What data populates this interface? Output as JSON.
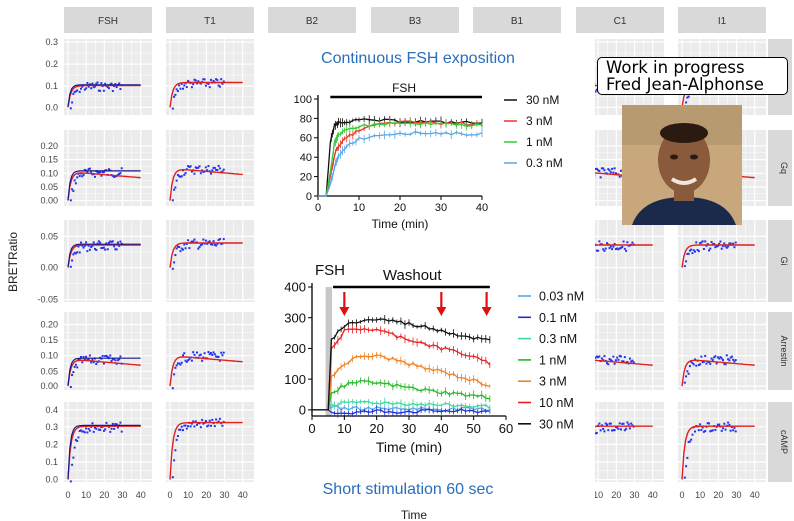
{
  "facets": {
    "columns": [
      "FSH",
      "T1",
      "B2",
      "B3",
      "B1",
      "C1",
      "I1"
    ],
    "rows": [
      "",
      "Gq",
      "Gi",
      "Arrestin",
      "cAMP"
    ],
    "y_label": "BRETRatio",
    "x_label": "Time",
    "x_ticks": [
      "0",
      "10",
      "20",
      "30",
      "40"
    ],
    "row_y_ticks": [
      [
        "0.0",
        "0.1",
        "0.2",
        "0.3"
      ],
      [
        "0.00",
        "0.05",
        "0.10",
        "0.15",
        "0.20"
      ],
      [
        "-0.05",
        "0.00",
        "0.05"
      ],
      [
        "0.00",
        "0.05",
        "0.10",
        "0.15",
        "0.20"
      ],
      [
        "0.0",
        "0.1",
        "0.2",
        "0.3",
        "0.4"
      ]
    ],
    "colors": {
      "data": "#2233ee",
      "fit_red": "#e01f1f",
      "fit_blue": "#1a1a8a",
      "strip_bg": "#d9d9d9",
      "panel_bg": "#ebebeb"
    }
  },
  "top_chart": {
    "title": "Continuous FSH exposition",
    "bar_label": "FSH",
    "xlabel": "Time (min)",
    "x_ticks": [
      "0",
      "10",
      "20",
      "30",
      "40"
    ],
    "y_ticks": [
      "0",
      "20",
      "40",
      "60",
      "80",
      "100"
    ],
    "legend": [
      "30 nM",
      "3 nM",
      "1 nM",
      "0.3 nM"
    ],
    "colors": [
      "#111111",
      "#e8342a",
      "#33cc33",
      "#5aa6e8"
    ]
  },
  "bottom_chart": {
    "fsh_label": "FSH",
    "washout_label": "Washout",
    "xlabel": "Time (min)",
    "x_ticks": [
      "0",
      "10",
      "20",
      "30",
      "40",
      "50",
      "60"
    ],
    "y_ticks": [
      "0",
      "100",
      "200",
      "300",
      "400"
    ],
    "legend": [
      "0.03 nM",
      "0.1 nM",
      "0.3 nM",
      "1 nM",
      "3 nM",
      "10 nM",
      "30 nM"
    ],
    "colors": [
      "#5aa6e8",
      "#1f2fd6",
      "#3fd6a0",
      "#22bb22",
      "#f08020",
      "#e82020",
      "#111111"
    ],
    "caption": "Short stimulation 60 sec"
  },
  "overlay": {
    "line1": "Work in progress",
    "line2": "Fred Jean-Alphonse"
  },
  "chart_data": [
    {
      "type": "line",
      "title": "Continuous FSH exposition",
      "xlabel": "Time (min)",
      "ylabel": "",
      "xlim": [
        0,
        40
      ],
      "ylim": [
        0,
        100
      ],
      "annotation_bar": {
        "label": "FSH",
        "from": 3,
        "to": 40
      },
      "series": [
        {
          "name": "30 nM",
          "x": [
            0,
            2,
            3,
            4,
            5,
            7,
            10,
            15,
            20,
            25,
            30,
            35,
            40
          ],
          "y": [
            0,
            0,
            55,
            72,
            76,
            77,
            78,
            78,
            77,
            77,
            76,
            76,
            75
          ]
        },
        {
          "name": "3 nM",
          "x": [
            0,
            2,
            3,
            4,
            5,
            7,
            10,
            15,
            20,
            25,
            30,
            35,
            40
          ],
          "y": [
            0,
            0,
            20,
            42,
            52,
            60,
            68,
            74,
            76,
            76,
            75,
            75,
            74
          ]
        },
        {
          "name": "1 nM",
          "x": [
            0,
            2,
            3,
            4,
            5,
            7,
            10,
            15,
            20,
            25,
            30,
            35,
            40
          ],
          "y": [
            0,
            0,
            25,
            55,
            62,
            68,
            72,
            74,
            75,
            74,
            74,
            73,
            73
          ]
        },
        {
          "name": "0.3 nM",
          "x": [
            0,
            2,
            3,
            4,
            5,
            7,
            10,
            15,
            20,
            25,
            30,
            35,
            40
          ],
          "y": [
            0,
            0,
            12,
            30,
            40,
            52,
            59,
            63,
            65,
            65,
            65,
            64,
            64
          ]
        }
      ]
    },
    {
      "type": "line",
      "title": "",
      "xlabel": "Time (min)",
      "ylabel": "",
      "xlim": [
        0,
        60
      ],
      "ylim": [
        -20,
        400
      ],
      "annotations": [
        {
          "label": "FSH",
          "from": 5,
          "to": 6
        },
        {
          "label": "Washout",
          "from": 6,
          "to": 55
        },
        {
          "type": "arrow",
          "x": 10
        },
        {
          "type": "arrow",
          "x": 40
        },
        {
          "type": "arrow",
          "x": 54
        }
      ],
      "series": [
        {
          "name": "0.03 nM",
          "x": [
            0,
            5,
            6,
            10,
            15,
            20,
            25,
            30,
            35,
            40,
            45,
            50,
            55
          ],
          "y": [
            0,
            0,
            8,
            5,
            5,
            5,
            4,
            4,
            3,
            3,
            2,
            2,
            2
          ]
        },
        {
          "name": "0.1 nM",
          "x": [
            0,
            5,
            6,
            10,
            15,
            20,
            25,
            30,
            35,
            40,
            45,
            50,
            55
          ],
          "y": [
            0,
            0,
            -8,
            -10,
            -8,
            -4,
            -6,
            -5,
            -4,
            -3,
            -4,
            -5,
            -4
          ]
        },
        {
          "name": "0.3 nM",
          "x": [
            0,
            5,
            6,
            10,
            15,
            20,
            25,
            30,
            35,
            40,
            45,
            50,
            55
          ],
          "y": [
            0,
            0,
            18,
            20,
            26,
            24,
            22,
            20,
            18,
            16,
            14,
            12,
            10
          ]
        },
        {
          "name": "1 nM",
          "x": [
            0,
            5,
            6,
            10,
            15,
            20,
            25,
            30,
            35,
            40,
            45,
            50,
            55
          ],
          "y": [
            0,
            0,
            55,
            80,
            90,
            88,
            80,
            72,
            64,
            58,
            52,
            46,
            40
          ]
        },
        {
          "name": "3 nM",
          "x": [
            0,
            5,
            6,
            10,
            15,
            20,
            25,
            30,
            35,
            40,
            45,
            50,
            55
          ],
          "y": [
            0,
            0,
            110,
            150,
            175,
            175,
            165,
            150,
            135,
            125,
            110,
            95,
            80
          ]
        },
        {
          "name": "10 nM",
          "x": [
            0,
            5,
            6,
            10,
            15,
            20,
            25,
            30,
            35,
            40,
            45,
            50,
            55
          ],
          "y": [
            0,
            0,
            200,
            255,
            265,
            260,
            245,
            230,
            215,
            200,
            190,
            170,
            150
          ]
        },
        {
          "name": "30 nM",
          "x": [
            0,
            5,
            6,
            10,
            15,
            20,
            25,
            30,
            35,
            40,
            45,
            50,
            55
          ],
          "y": [
            0,
            0,
            230,
            275,
            290,
            295,
            290,
            280,
            270,
            260,
            245,
            235,
            225
          ]
        }
      ]
    }
  ]
}
